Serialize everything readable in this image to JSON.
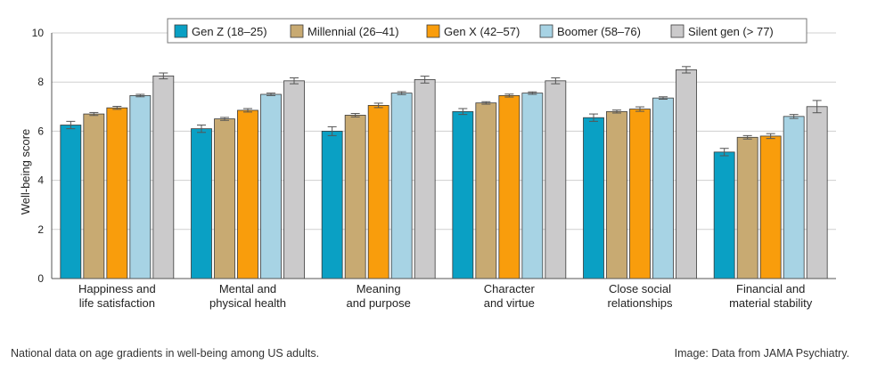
{
  "chart_data": {
    "type": "bar",
    "title": "",
    "xlabel": "",
    "ylabel": "Well-being score",
    "ylim": [
      0,
      10
    ],
    "yticks": [
      "0",
      "2",
      "4",
      "6",
      "8",
      "10"
    ],
    "grid": true,
    "legend_position": "top",
    "error_bars": true,
    "categories": [
      [
        "Happiness and",
        "life satisfaction"
      ],
      [
        "Mental and",
        "physical health"
      ],
      [
        "Meaning",
        "and purpose"
      ],
      [
        "Character",
        "and virtue"
      ],
      [
        "Close social",
        "relationships"
      ],
      [
        "Financial and",
        "material stability"
      ]
    ],
    "series": [
      {
        "name": "Gen Z (18–25)",
        "color": "#0aa0c4",
        "values": [
          6.25,
          6.1,
          6.0,
          6.8,
          6.55,
          5.15
        ],
        "errors": [
          0.15,
          0.15,
          0.18,
          0.12,
          0.15,
          0.15
        ]
      },
      {
        "name": "Millennial (26–41)",
        "color": "#c8aa72",
        "values": [
          6.7,
          6.5,
          6.65,
          7.15,
          6.8,
          5.75
        ],
        "errors": [
          0.06,
          0.06,
          0.07,
          0.05,
          0.06,
          0.07
        ]
      },
      {
        "name": "Gen X (42–57)",
        "color": "#f99d0c",
        "values": [
          6.95,
          6.85,
          7.05,
          7.45,
          6.9,
          5.8
        ],
        "errors": [
          0.06,
          0.07,
          0.09,
          0.06,
          0.09,
          0.1
        ]
      },
      {
        "name": "Boomer (58–76)",
        "color": "#a7d3e4",
        "values": [
          7.45,
          7.5,
          7.55,
          7.55,
          7.35,
          6.6
        ],
        "errors": [
          0.05,
          0.05,
          0.06,
          0.05,
          0.05,
          0.08
        ]
      },
      {
        "name": "Silent gen (> 77)",
        "color": "#cbcacb",
        "values": [
          8.25,
          8.05,
          8.1,
          8.05,
          8.5,
          7.0
        ],
        "errors": [
          0.12,
          0.12,
          0.14,
          0.12,
          0.13,
          0.25
        ]
      }
    ]
  },
  "captions": {
    "left": "National data on age gradients in well-being among US adults.",
    "right": "Image: Data from JAMA Psychiatry."
  }
}
